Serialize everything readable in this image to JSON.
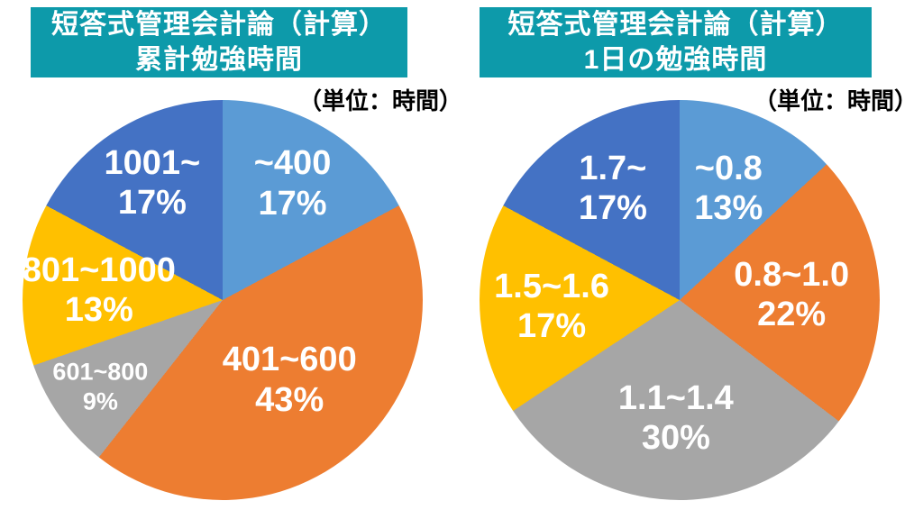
{
  "colors": {
    "header_bg": "#0D9AAA",
    "header_text": "#FFFFFF",
    "slice_label_text": "#FFFFFF",
    "unit_text": "#000000",
    "background": "#FFFFFF"
  },
  "chart_data": [
    {
      "type": "pie",
      "title_line1": "短答式管理会計論（計算）",
      "title_line2": "累計勉強時間",
      "unit_label": "（単位：時間）",
      "start_angle_deg": 0,
      "direction": "clockwise",
      "slices": [
        {
          "label": "~400",
          "pct": 17,
          "pct_label": "17%",
          "color": "#5B9BD5"
        },
        {
          "label": "401~600",
          "pct": 43,
          "pct_label": "43%",
          "color": "#ED7D31"
        },
        {
          "label": "601~800",
          "pct": 9,
          "pct_label": "9%",
          "color": "#A6A6A6"
        },
        {
          "label": "801~1000",
          "pct": 13,
          "pct_label": "13%",
          "color": "#FFC000"
        },
        {
          "label": "1001~",
          "pct": 17,
          "pct_label": "17%",
          "color": "#4472C4"
        }
      ]
    },
    {
      "type": "pie",
      "title_line1": "短答式管理会計論（計算）",
      "title_line2": "1日の勉強時間",
      "unit_label": "（単位：時間）",
      "start_angle_deg": 0,
      "direction": "clockwise",
      "slices": [
        {
          "label": "~0.8",
          "pct": 13,
          "pct_label": "13%",
          "color": "#5B9BD5"
        },
        {
          "label": "0.8~1.0",
          "pct": 22,
          "pct_label": "22%",
          "color": "#ED7D31"
        },
        {
          "label": "1.1~1.4",
          "pct": 30,
          "pct_label": "30%",
          "color": "#A6A6A6"
        },
        {
          "label": "1.5~1.6",
          "pct": 17,
          "pct_label": "17%",
          "color": "#FFC000"
        },
        {
          "label": "1.7~",
          "pct": 17,
          "pct_label": "17%",
          "color": "#4472C4"
        }
      ]
    }
  ]
}
